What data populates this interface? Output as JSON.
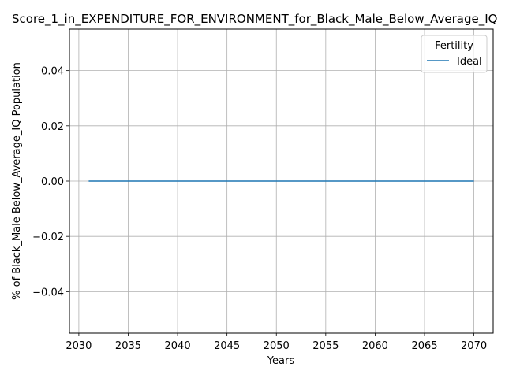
{
  "chart_data": {
    "type": "line",
    "title": "Score_1_in_EXPENDITURE_FOR_ENVIRONMENT_for_Black_Male_Below_Average_IQ",
    "xlabel": "Years",
    "ylabel": "% of Black_Male Below_Average_IQ Population",
    "xlim": [
      2029.05,
      2071.95
    ],
    "ylim": [
      -0.055,
      0.055
    ],
    "xticks": [
      2030,
      2035,
      2040,
      2045,
      2050,
      2055,
      2060,
      2065,
      2070
    ],
    "xtick_labels": [
      "2030",
      "2035",
      "2040",
      "2045",
      "2050",
      "2055",
      "2060",
      "2065",
      "2070"
    ],
    "yticks": [
      -0.04,
      -0.02,
      0.0,
      0.02,
      0.04
    ],
    "ytick_labels": [
      "−0.04",
      "−0.02",
      "0.00",
      "0.02",
      "0.04"
    ],
    "grid": true,
    "legend": {
      "title": "Fertility",
      "placement": "top-right"
    },
    "series": [
      {
        "name": "Ideal",
        "color": "#1f77b4",
        "x": [
          2031,
          2070
        ],
        "y": [
          0.0,
          0.0
        ]
      }
    ]
  }
}
